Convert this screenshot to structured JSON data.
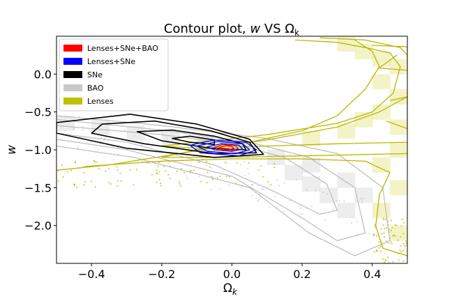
{
  "chart_data": {
    "type": "scatter",
    "title_main": "Contour plot, ",
    "title_w": "w",
    "title_vs": " VS Ω",
    "title_sub": "k",
    "xlabel_main": "Ω",
    "xlabel_sub": "k",
    "ylabel": "w",
    "xlim": [
      -0.5,
      0.5
    ],
    "ylim": [
      -2.5,
      0.5
    ],
    "xticks": [
      -0.4,
      -0.2,
      0.0,
      0.2,
      0.4
    ],
    "xtick_labels": [
      "−0.4",
      "−0.2",
      "0.0",
      "0.2",
      "0.4"
    ],
    "yticks": [
      0.0,
      -0.5,
      -1.0,
      -1.5,
      -2.0
    ],
    "ytick_labels": [
      "0.0",
      "−0.5",
      "−1.0",
      "−1.5",
      "−2.0"
    ],
    "grid": false,
    "legend_position": "top-left",
    "legend": [
      {
        "label": "Lenses+SNe+BAO",
        "color": "#ff0000"
      },
      {
        "label": "Lenses+SNe",
        "color": "#0000ff"
      },
      {
        "label": "SNe",
        "color": "#000000"
      },
      {
        "label": "BAO",
        "color": "#c8c8c8"
      },
      {
        "label": "Lenses",
        "color": "#c0c000"
      }
    ],
    "series": [
      {
        "key": "lenses_sne_bao",
        "color": "#ff0000",
        "contours": [
          [
            [
              -0.035,
              -0.97
            ],
            [
              -0.02,
              -0.945
            ],
            [
              0.0,
              -0.955
            ],
            [
              0.005,
              -0.98
            ],
            [
              -0.01,
              -1.0
            ],
            [
              -0.03,
              -0.995
            ]
          ],
          [
            [
              -0.05,
              -0.965
            ],
            [
              -0.025,
              -0.93
            ],
            [
              0.01,
              -0.945
            ],
            [
              0.018,
              -0.985
            ],
            [
              -0.005,
              -1.01
            ],
            [
              -0.04,
              -1.0
            ]
          ]
        ]
      },
      {
        "key": "lenses_sne",
        "color": "#0000ff",
        "contours": [
          [
            [
              -0.07,
              -0.96
            ],
            [
              -0.03,
              -0.92
            ],
            [
              0.02,
              -0.94
            ],
            [
              0.03,
              -0.99
            ],
            [
              0.0,
              -1.02
            ],
            [
              -0.05,
              -1.0
            ]
          ],
          [
            [
              -0.1,
              -0.95
            ],
            [
              -0.04,
              -0.89
            ],
            [
              0.03,
              -0.92
            ],
            [
              0.05,
              -1.0
            ],
            [
              0.01,
              -1.05
            ],
            [
              -0.07,
              -1.02
            ]
          ],
          [
            [
              -0.12,
              -0.94
            ],
            [
              -0.05,
              -0.87
            ],
            [
              0.04,
              -0.9
            ],
            [
              0.07,
              -1.0
            ],
            [
              0.02,
              -1.08
            ],
            [
              -0.09,
              -1.04
            ]
          ]
        ]
      },
      {
        "key": "sne",
        "color": "#000000",
        "contours": [
          [
            [
              -0.17,
              -0.85
            ],
            [
              -0.12,
              -0.82
            ],
            [
              -0.05,
              -0.87
            ],
            [
              -0.05,
              -0.93
            ],
            [
              -0.12,
              -0.9
            ]
          ],
          [
            [
              -0.27,
              -0.76
            ],
            [
              -0.17,
              -0.74
            ],
            [
              -0.05,
              -0.82
            ],
            [
              0.03,
              -0.92
            ],
            [
              0.04,
              -1.0
            ],
            [
              -0.06,
              -0.98
            ],
            [
              -0.2,
              -0.88
            ]
          ],
          [
            [
              -0.37,
              -0.66
            ],
            [
              -0.22,
              -0.62
            ],
            [
              -0.06,
              -0.75
            ],
            [
              0.05,
              -0.9
            ],
            [
              0.07,
              -1.04
            ],
            [
              -0.05,
              -1.05
            ],
            [
              -0.25,
              -0.92
            ],
            [
              -0.4,
              -0.78
            ]
          ],
          [
            [
              -0.5,
              -0.64
            ],
            [
              -0.29,
              -0.53
            ],
            [
              -0.1,
              -0.66
            ],
            [
              0.05,
              -0.86
            ],
            [
              0.09,
              -1.06
            ],
            [
              -0.05,
              -1.1
            ],
            [
              -0.3,
              -0.98
            ],
            [
              -0.5,
              -0.78
            ]
          ]
        ]
      },
      {
        "key": "bao",
        "color": "#bfbfbf",
        "contours": [
          [
            [
              -0.5,
              -0.68
            ],
            [
              -0.2,
              -0.8
            ],
            [
              0.0,
              -0.92
            ],
            [
              0.15,
              -1.1
            ],
            [
              0.27,
              -1.45
            ],
            [
              0.3,
              -1.8
            ],
            [
              0.25,
              -1.85
            ],
            [
              0.12,
              -1.55
            ],
            [
              -0.05,
              -1.2
            ],
            [
              -0.3,
              -0.9
            ],
            [
              -0.5,
              -0.78
            ]
          ],
          [
            [
              -0.5,
              -0.6
            ],
            [
              -0.2,
              -0.74
            ],
            [
              0.05,
              -0.9
            ],
            [
              0.22,
              -1.1
            ],
            [
              0.35,
              -1.5
            ],
            [
              0.38,
              -2.1
            ],
            [
              0.3,
              -2.2
            ],
            [
              0.2,
              -1.9
            ],
            [
              0.0,
              -1.35
            ],
            [
              -0.3,
              -1.0
            ],
            [
              -0.5,
              -0.86
            ]
          ],
          [
            [
              -0.5,
              -0.55
            ],
            [
              -0.2,
              -0.68
            ],
            [
              0.1,
              -0.85
            ],
            [
              0.3,
              -1.05
            ],
            [
              0.43,
              -1.5
            ],
            [
              0.45,
              -2.2
            ],
            [
              0.35,
              -2.4
            ],
            [
              0.22,
              -2.1
            ],
            [
              0.05,
              -1.5
            ],
            [
              -0.28,
              -1.1
            ],
            [
              -0.5,
              -0.95
            ]
          ]
        ]
      },
      {
        "key": "lenses",
        "color": "#b8b800",
        "contours": [
          [
            [
              0.4,
              0.38
            ],
            [
              0.5,
              0.36
            ],
            [
              0.5,
              0.05
            ],
            [
              0.42,
              0.08
            ],
            [
              0.47,
              0.25
            ]
          ],
          [
            [
              0.45,
              -0.35
            ],
            [
              0.5,
              -0.3
            ],
            [
              0.5,
              -0.72
            ],
            [
              0.44,
              -0.62
            ]
          ],
          [
            [
              0.18,
              0.45
            ],
            [
              0.3,
              0.42
            ],
            [
              0.38,
              0.35
            ],
            [
              0.45,
              0.28
            ],
            [
              0.48,
              0.1
            ],
            [
              0.46,
              -0.25
            ],
            [
              0.4,
              -0.5
            ],
            [
              0.3,
              -0.65
            ],
            [
              0.1,
              -0.8
            ],
            [
              -0.1,
              -0.9
            ],
            [
              -0.2,
              -0.95
            ],
            [
              -0.1,
              -0.98
            ],
            [
              0.1,
              -0.95
            ],
            [
              0.3,
              -0.92
            ],
            [
              0.5,
              -0.9
            ]
          ],
          [
            [
              0.25,
              0.48
            ],
            [
              0.38,
              0.45
            ],
            [
              0.48,
              0.35
            ],
            [
              0.53,
              0.1
            ],
            [
              0.5,
              -0.3
            ],
            [
              0.42,
              -0.5
            ],
            [
              0.3,
              -0.7
            ],
            [
              0.1,
              -0.87
            ],
            [
              -0.1,
              -1.0
            ],
            [
              -0.2,
              -1.1
            ],
            [
              -0.05,
              -1.1
            ],
            [
              0.2,
              -1.08
            ],
            [
              0.5,
              -1.05
            ]
          ],
          [
            [
              -0.5,
              -1.27
            ],
            [
              -0.35,
              -1.2
            ],
            [
              -0.15,
              -1.05
            ],
            [
              0.05,
              -0.9
            ],
            [
              0.2,
              -0.75
            ],
            [
              0.3,
              -0.55
            ],
            [
              0.38,
              -0.2
            ],
            [
              0.42,
              0.1
            ],
            [
              0.4,
              0.3
            ],
            [
              0.35,
              0.45
            ]
          ],
          [
            [
              -0.42,
              -1.22
            ],
            [
              -0.2,
              -1.15
            ],
            [
              0.0,
              -1.12
            ],
            [
              0.2,
              -1.12
            ],
            [
              0.38,
              -1.15
            ],
            [
              0.45,
              -1.3
            ],
            [
              0.42,
              -1.6
            ],
            [
              0.41,
              -2.0
            ],
            [
              0.43,
              -2.3
            ],
            [
              0.5,
              -2.4
            ]
          ]
        ]
      }
    ]
  }
}
